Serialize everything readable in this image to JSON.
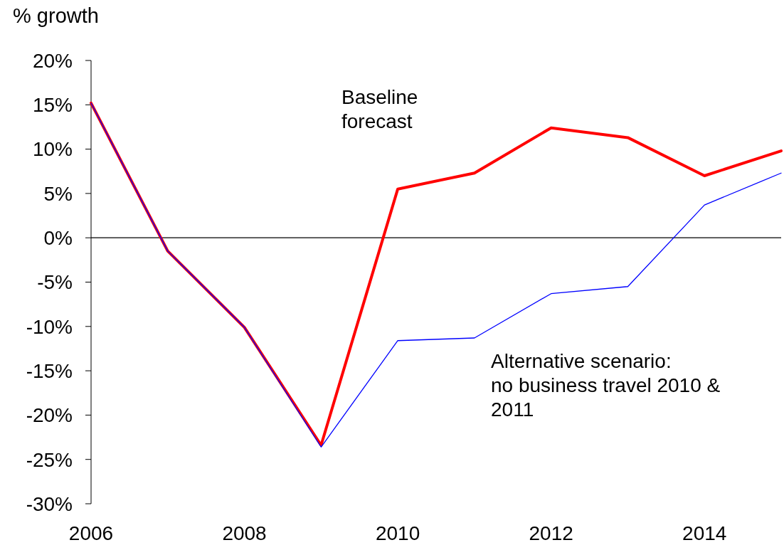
{
  "chart_data": {
    "type": "line",
    "ylabel": "% growth",
    "x": [
      2006,
      2007,
      2008,
      2009,
      2010,
      2011,
      2012,
      2013,
      2014,
      2015
    ],
    "xlim": [
      2006,
      2015
    ],
    "xticks": [
      2006,
      2008,
      2010,
      2012,
      2014
    ],
    "ylim": [
      -30,
      20
    ],
    "yticks": [
      {
        "value": -30,
        "label": "-30%"
      },
      {
        "value": -25,
        "label": "-25%"
      },
      {
        "value": -20,
        "label": "-20%"
      },
      {
        "value": -15,
        "label": "-15%"
      },
      {
        "value": -10,
        "label": "-10%"
      },
      {
        "value": -5,
        "label": "-5%"
      },
      {
        "value": 0,
        "label": "0%"
      },
      {
        "value": 5,
        "label": "5%"
      },
      {
        "value": 10,
        "label": "10%"
      },
      {
        "value": 15,
        "label": "15%"
      },
      {
        "value": 20,
        "label": "20%"
      }
    ],
    "series": [
      {
        "name": "Alternative scenario: no business travel 2010 & 2011",
        "color": "#0000ff",
        "values": [
          15.2,
          -1.5,
          -10.1,
          -23.6,
          -11.6,
          -11.3,
          -6.3,
          -5.5,
          3.7,
          7.3
        ]
      },
      {
        "name": "Baseline forecast",
        "color": "#ff0000",
        "values": [
          15.2,
          -1.5,
          -10.1,
          -23.4,
          5.5,
          7.3,
          12.4,
          11.3,
          7.0,
          9.8
        ]
      }
    ],
    "ref_lines": [
      {
        "axis": "y",
        "value": 0,
        "color": "#000000"
      }
    ],
    "grid": false,
    "line_style": "solid"
  }
}
